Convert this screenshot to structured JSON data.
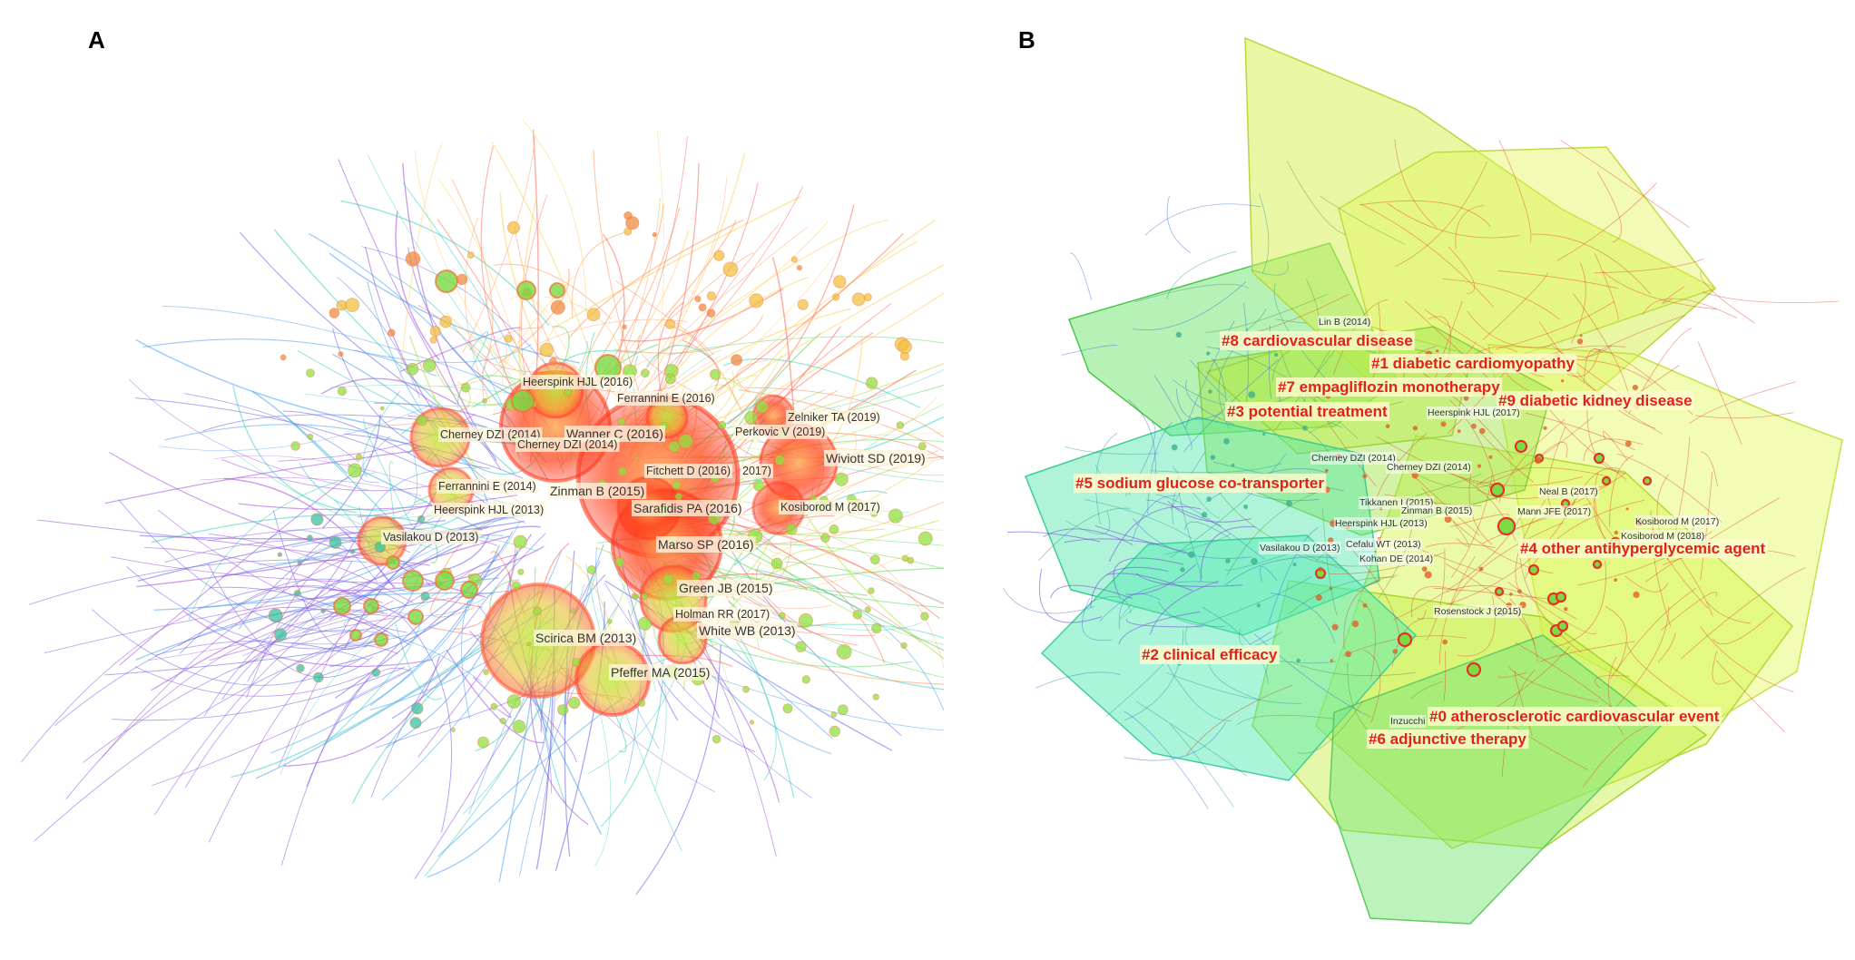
{
  "panels": {
    "a": {
      "letter": "A",
      "node_labels": [
        {
          "text": "Heerspink HJL (2016)"
        },
        {
          "text": "Ferrannini E (2016)"
        },
        {
          "text": "Zelniker TA (2019)"
        },
        {
          "text": "Perkovic V (2019)"
        },
        {
          "text": "Cherney DZI (2014)"
        },
        {
          "text": "Wanner C (2016)"
        },
        {
          "text": "Cherney DZI (2014)"
        },
        {
          "text": "Wiviott SD (2019)"
        },
        {
          "text": "Fitchett D (2016)"
        },
        {
          "text": "2017)"
        },
        {
          "text": "Ferrannini E (2014)"
        },
        {
          "text": "Zinman B (2015)"
        },
        {
          "text": "Kosiborod M (2017)"
        },
        {
          "text": "Heerspink HJL (2013)"
        },
        {
          "text": "Sarafidis PA (2016)"
        },
        {
          "text": "Vasilakou D (2013)"
        },
        {
          "text": "Marso SP (2016)"
        },
        {
          "text": "Green JB (2015)"
        },
        {
          "text": "Holman RR (2017)"
        },
        {
          "text": "Scirica BM (2013)"
        },
        {
          "text": "White WB (2013)"
        },
        {
          "text": "Pfeffer MA (2015)"
        }
      ]
    },
    "b": {
      "letter": "B",
      "cluster_labels": [
        {
          "text": "#8 cardiovascular disease"
        },
        {
          "text": "#1 diabetic cardiomyopathy"
        },
        {
          "text": "#7 empagliflozin monotherapy"
        },
        {
          "text": "#9 diabetic kidney disease"
        },
        {
          "text": "#3 potential treatment"
        },
        {
          "text": "#5 sodium glucose co-transporter"
        },
        {
          "text": "#4 other antihyperglycemic agent"
        },
        {
          "text": "#2 clinical efficacy"
        },
        {
          "text": "#0 atherosclerotic cardiovascular event"
        },
        {
          "text": "#6 adjunctive therapy"
        }
      ],
      "node_labels": [
        {
          "text": "Lin B (2014)"
        },
        {
          "text": "Heerspink HJL (2017)"
        },
        {
          "text": "Cherney DZI (2014)"
        },
        {
          "text": "Cherney DZI (2014)"
        },
        {
          "text": "Neal B (2017)"
        },
        {
          "text": "Tikkanen I (2015)"
        },
        {
          "text": "Zinman B (2015)"
        },
        {
          "text": "Mann JFE (2017)"
        },
        {
          "text": "Heerspink HJL (2013)"
        },
        {
          "text": "Kosiborod M (2017)"
        },
        {
          "text": "Cefalu WT (2013)"
        },
        {
          "text": "Kosiborod M (2018)"
        },
        {
          "text": "Vasilakou D (2013)"
        },
        {
          "text": "Kohan DE (2014)"
        },
        {
          "text": "Rosenstock J (2015)"
        },
        {
          "text": "Inzucchi"
        }
      ]
    }
  }
}
